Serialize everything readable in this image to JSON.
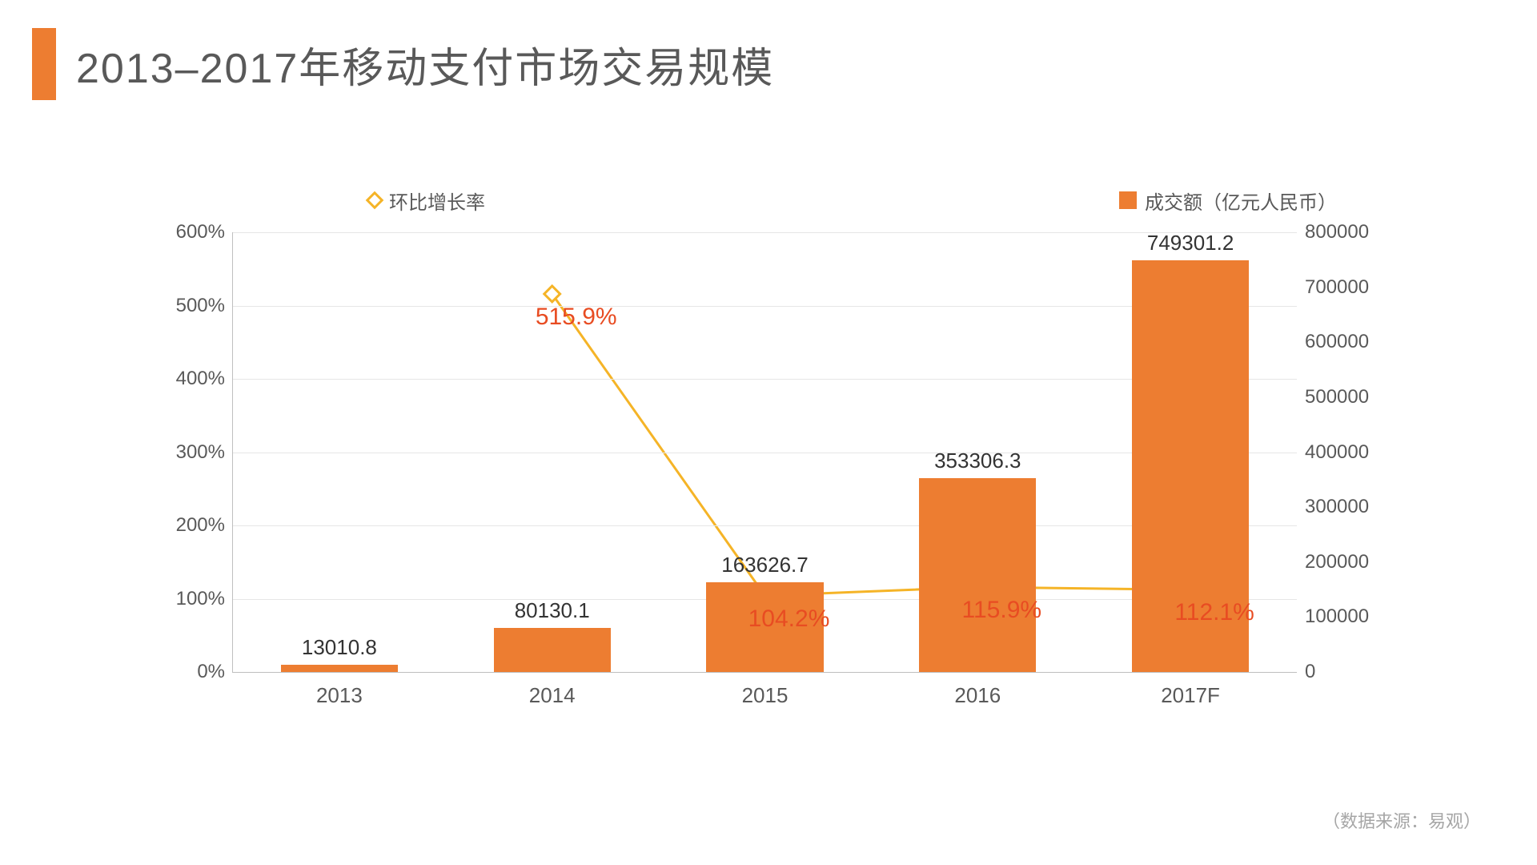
{
  "title": "2013–2017年移动支付市场交易规模",
  "accent_color": "#ed7d31",
  "source_note": "（数据来源：易观）",
  "legend": {
    "line_label": "环比增长率",
    "bar_label": "成交额（亿元人民币）"
  },
  "chart": {
    "type": "bar+line",
    "categories": [
      "2013",
      "2014",
      "2015",
      "2016",
      "2017F"
    ],
    "bar": {
      "values": [
        13010.8,
        80130.1,
        163626.7,
        353306.3,
        749301.2
      ],
      "value_labels": [
        "13010.8",
        "80130.1",
        "163626.7",
        "353306.3",
        "749301.2"
      ],
      "color": "#ed7d31",
      "axis": {
        "min": 0,
        "max": 800000,
        "step": 100000,
        "tick_labels": [
          "0",
          "100000",
          "200000",
          "300000",
          "400000",
          "500000",
          "600000",
          "700000",
          "800000"
        ]
      },
      "bar_width_ratio": 0.55
    },
    "line": {
      "values": [
        null,
        515.9,
        104.2,
        115.9,
        112.1
      ],
      "value_labels": [
        null,
        "515.9%",
        "104.2%",
        "115.9%",
        "112.1%"
      ],
      "color": "#f5b427",
      "label_color": "#e84c22",
      "axis": {
        "min": 0,
        "max": 600,
        "step": 100,
        "tick_labels": [
          "0%",
          "100%",
          "200%",
          "300%",
          "400%",
          "500%",
          "600%"
        ]
      },
      "marker": {
        "shape": "diamond",
        "fill": "#ffffff",
        "stroke": "#f5b427",
        "size": 14,
        "stroke_width": 3
      },
      "line_width": 3
    },
    "grid_color": "#e6e6e6",
    "axis_color": "#bfbfbf",
    "text_color": "#595959",
    "background_color": "#ffffff",
    "label_fontsize": 26,
    "tick_fontsize": 24,
    "growth_label_fontsize": 30
  }
}
